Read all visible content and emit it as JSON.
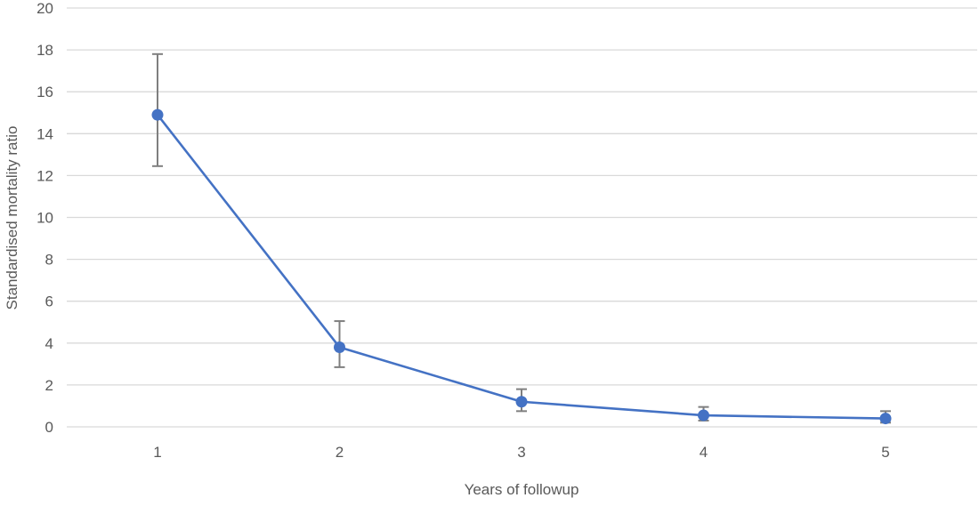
{
  "chart_data": {
    "type": "line",
    "title": "",
    "xlabel": "Years of followup",
    "ylabel": "Standardised mortality ratio",
    "x": [
      1,
      2,
      3,
      4,
      5
    ],
    "ylim": [
      0,
      20
    ],
    "yticks": [
      0,
      2,
      4,
      6,
      8,
      10,
      12,
      14,
      16,
      18,
      20
    ],
    "grid": true,
    "legend": "none",
    "series": [
      {
        "values": [
          14.9,
          3.8,
          1.2,
          0.55,
          0.4
        ],
        "error_low": [
          12.45,
          2.85,
          0.75,
          0.3,
          0.2
        ],
        "error_high": [
          17.8,
          5.05,
          1.8,
          0.95,
          0.75
        ],
        "color": "#4472C4"
      }
    ],
    "colors": {
      "line": "#4472C4",
      "error_bar": "#7F7F7F",
      "grid": "#D9D9D9",
      "text": "#595959"
    }
  }
}
